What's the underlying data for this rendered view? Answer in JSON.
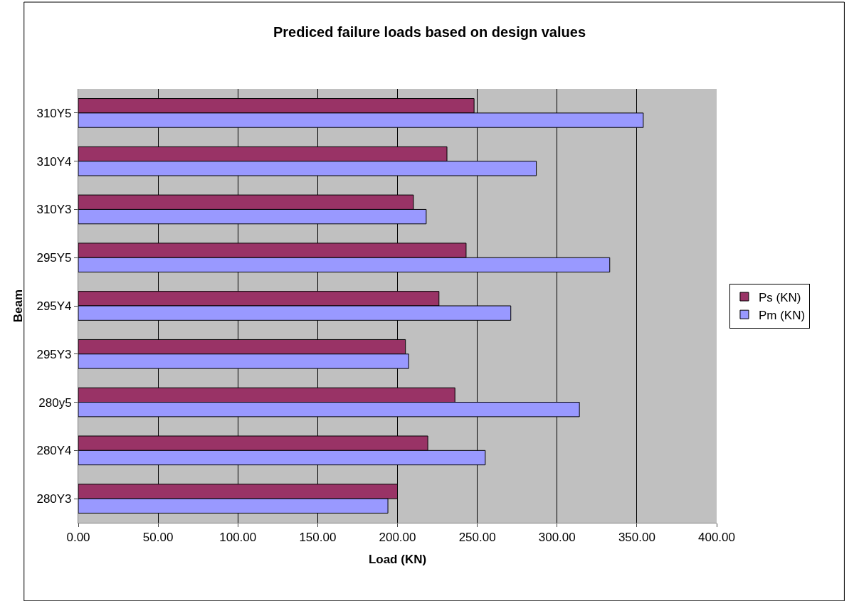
{
  "chart_data": {
    "type": "bar",
    "orientation": "horizontal",
    "title": "Prediced failure loads based on design values",
    "xlabel": "Load (KN)",
    "ylabel": "Beam",
    "categories": [
      "310Y5",
      "310Y4",
      "310Y3",
      "295Y5",
      "295Y4",
      "295Y3",
      "280y5",
      "280Y4",
      "280Y3"
    ],
    "series": [
      {
        "name": "Ps (KN)",
        "color": "#993366",
        "values": [
          248,
          231,
          210,
          243,
          226,
          205,
          236,
          219,
          200
        ]
      },
      {
        "name": "Pm (KN)",
        "color": "#9999ff",
        "values": [
          354,
          287,
          218,
          333,
          271,
          207,
          314,
          255,
          194
        ]
      }
    ],
    "xlim": [
      0,
      400
    ],
    "xticks": [
      {
        "value": 0,
        "label": "0.00"
      },
      {
        "value": 50,
        "label": "50.00"
      },
      {
        "value": 100,
        "label": "100.00"
      },
      {
        "value": 150,
        "label": "150.00"
      },
      {
        "value": 200,
        "label": "200.00"
      },
      {
        "value": 250,
        "label": "250.00"
      },
      {
        "value": 300,
        "label": "300.00"
      },
      {
        "value": 350,
        "label": "350.00"
      },
      {
        "value": 400,
        "label": "400.00"
      }
    ],
    "grid": "x",
    "legend": "right"
  }
}
